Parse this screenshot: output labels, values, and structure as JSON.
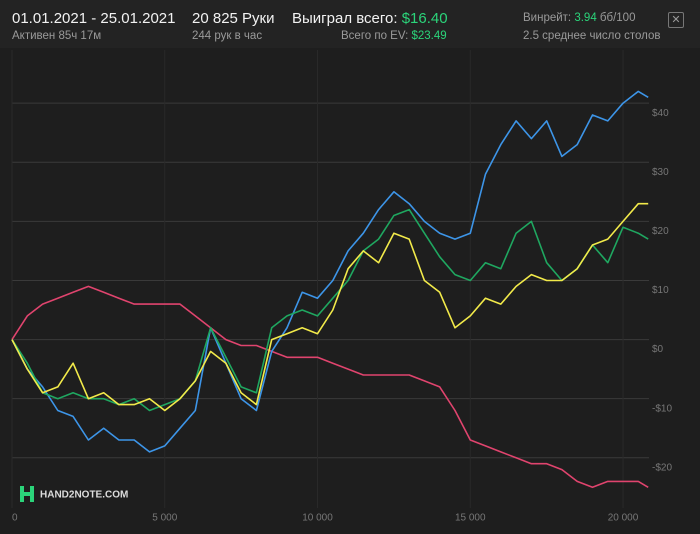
{
  "header": {
    "date_range": "01.01.2021 - 25.01.2021",
    "active": "Активен 85ч 17м",
    "hands": "20 825 Руки",
    "hands_per_hour": "244 рук в час",
    "won_label": "Выиграл всего:",
    "won_value": "$16.40",
    "ev_label": "Всего по EV:",
    "ev_value": "$23.49",
    "winrate_label": "Винрейт:",
    "winrate_value": "3.94",
    "winrate_unit": "бб/100",
    "tables": "2.5 среднее число столов"
  },
  "logo": "HAND2NOTE.COM",
  "chart_data": {
    "type": "line",
    "x": [
      0,
      500,
      1000,
      1500,
      2000,
      2500,
      3000,
      3500,
      4000,
      4500,
      5000,
      5500,
      6000,
      6500,
      7000,
      7500,
      8000,
      8500,
      9000,
      9500,
      10000,
      10500,
      11000,
      11500,
      12000,
      12500,
      13000,
      13500,
      14000,
      14500,
      15000,
      15500,
      16000,
      16500,
      17000,
      17500,
      18000,
      18500,
      19000,
      19500,
      20000,
      20500,
      20825
    ],
    "series": [
      {
        "color": "#e0446e",
        "values": [
          0,
          4,
          6,
          7,
          8,
          9,
          8,
          7,
          6,
          6,
          6,
          6,
          4,
          2,
          0,
          -1,
          -1,
          -2,
          -3,
          -3,
          -3,
          -4,
          -5,
          -6,
          -6,
          -6,
          -6,
          -7,
          -8,
          -12,
          -17,
          -18,
          -19,
          -20,
          -21,
          -21,
          -22,
          -24,
          -25,
          -24,
          -24,
          -24,
          -25
        ]
      },
      {
        "color": "#3d95e8",
        "values": [
          0,
          -5,
          -8,
          -12,
          -13,
          -17,
          -15,
          -17,
          -17,
          -19,
          -18,
          -15,
          -12,
          2,
          -4,
          -10,
          -12,
          -2,
          2,
          8,
          7,
          10,
          15,
          18,
          22,
          25,
          23,
          20,
          18,
          17,
          18,
          28,
          33,
          37,
          34,
          37,
          31,
          33,
          38,
          37,
          40,
          42,
          41
        ]
      },
      {
        "color": "#1fa760",
        "values": [
          0,
          -4,
          -9,
          -10,
          -9,
          -10,
          -10,
          -11,
          -10,
          -12,
          -11,
          -10,
          -7,
          2,
          -3,
          -8,
          -9,
          2,
          4,
          5,
          4,
          7,
          10,
          15,
          17,
          21,
          22,
          18,
          14,
          11,
          10,
          13,
          12,
          18,
          20,
          13,
          10,
          12,
          16,
          13,
          19,
          18,
          17
        ]
      },
      {
        "color": "#f2ea4a",
        "values": [
          0,
          -5,
          -9,
          -8,
          -4,
          -10,
          -9,
          -11,
          -11,
          -10,
          -12,
          -10,
          -7,
          -2,
          -4,
          -9,
          -11,
          0,
          1,
          2,
          1,
          5,
          12,
          15,
          13,
          18,
          17,
          10,
          8,
          2,
          4,
          7,
          6,
          9,
          11,
          10,
          10,
          12,
          16,
          17,
          20,
          23,
          23
        ]
      }
    ],
    "xlim": [
      0,
      20850
    ],
    "ylim": [
      -28.5,
      49
    ],
    "xticks": [
      0,
      {
        "value": 5000,
        "label": "5 000"
      },
      {
        "value": 10000,
        "label": "10 000"
      },
      {
        "value": 15000,
        "label": "15 000"
      },
      {
        "value": 20000,
        "label": "20 000"
      }
    ],
    "yticks": [
      {
        "value": -20,
        "label": "-$20"
      },
      {
        "value": -10,
        "label": "-$10"
      },
      {
        "value": 0,
        "label": "$0"
      },
      {
        "value": 10,
        "label": "$10"
      },
      {
        "value": 20,
        "label": "$20"
      },
      {
        "value": 30,
        "label": "$30"
      },
      {
        "value": 40,
        "label": "$40"
      }
    ],
    "grid": true
  }
}
